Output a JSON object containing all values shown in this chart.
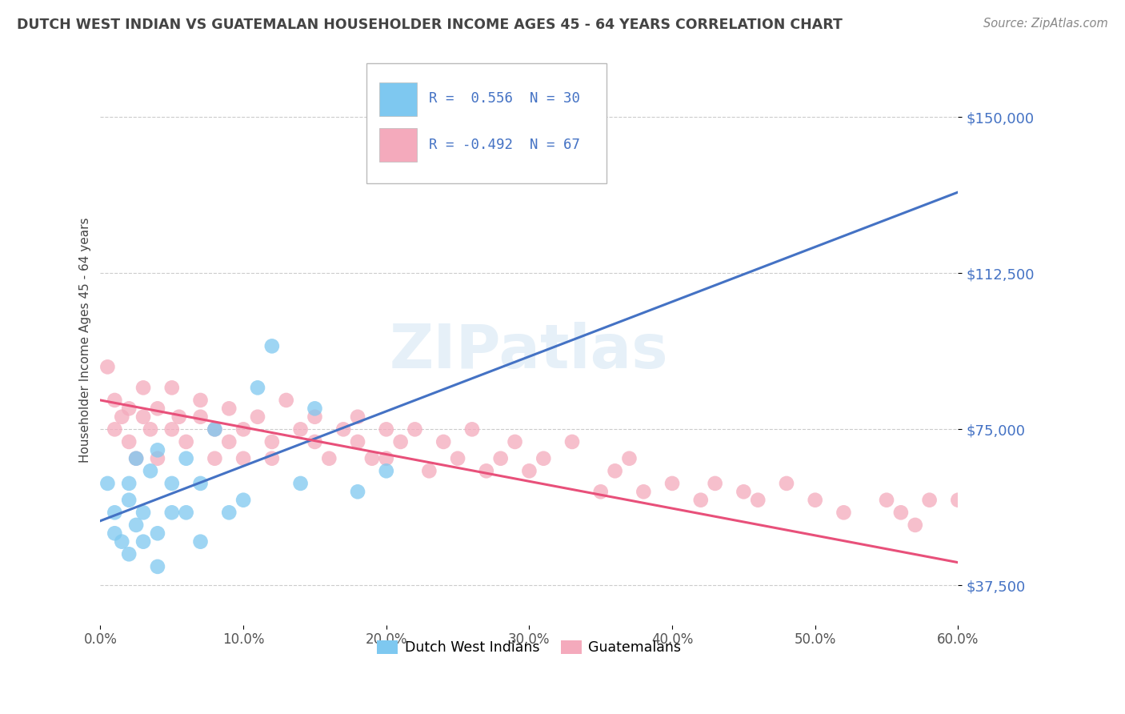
{
  "title": "DUTCH WEST INDIAN VS GUATEMALAN HOUSEHOLDER INCOME AGES 45 - 64 YEARS CORRELATION CHART",
  "source": "Source: ZipAtlas.com",
  "ylabel": "Householder Income Ages 45 - 64 years",
  "xlim": [
    0.0,
    0.6
  ],
  "ylim": [
    28000,
    165000
  ],
  "yticks": [
    37500,
    75000,
    112500,
    150000
  ],
  "xticks": [
    0.0,
    0.1,
    0.2,
    0.3,
    0.4,
    0.5,
    0.6
  ],
  "xtick_labels": [
    "0.0%",
    "10.0%",
    "20.0%",
    "30.0%",
    "40.0%",
    "50.0%",
    "60.0%"
  ],
  "ytick_labels": [
    "$37,500",
    "$75,000",
    "$112,500",
    "$150,000"
  ],
  "legend_entry1": "R =  0.556  N = 30",
  "legend_entry2": "R = -0.492  N = 67",
  "legend_label1": "Dutch West Indians",
  "legend_label2": "Guatemalans",
  "blue_color": "#7EC8F0",
  "pink_color": "#F4AABC",
  "line_blue": "#4472C4",
  "line_pink": "#E8507A",
  "r_color": "#4472C4",
  "watermark": "ZIPatlas",
  "background_color": "#FFFFFF",
  "grid_color": "#CCCCCC",
  "title_color": "#444444",
  "axis_label_color": "#444444",
  "blue_scatter": {
    "x": [
      0.005,
      0.01,
      0.01,
      0.015,
      0.02,
      0.02,
      0.02,
      0.025,
      0.025,
      0.03,
      0.03,
      0.035,
      0.04,
      0.04,
      0.04,
      0.05,
      0.05,
      0.06,
      0.06,
      0.07,
      0.07,
      0.08,
      0.09,
      0.1,
      0.11,
      0.12,
      0.14,
      0.15,
      0.18,
      0.2
    ],
    "y": [
      62000,
      50000,
      55000,
      48000,
      45000,
      58000,
      62000,
      52000,
      68000,
      48000,
      55000,
      65000,
      42000,
      50000,
      70000,
      55000,
      62000,
      55000,
      68000,
      62000,
      48000,
      75000,
      55000,
      58000,
      85000,
      95000,
      62000,
      80000,
      60000,
      65000
    ]
  },
  "pink_scatter": {
    "x": [
      0.005,
      0.01,
      0.01,
      0.015,
      0.02,
      0.02,
      0.025,
      0.03,
      0.03,
      0.035,
      0.04,
      0.04,
      0.05,
      0.05,
      0.055,
      0.06,
      0.07,
      0.07,
      0.08,
      0.08,
      0.09,
      0.09,
      0.1,
      0.1,
      0.11,
      0.12,
      0.12,
      0.13,
      0.14,
      0.15,
      0.15,
      0.16,
      0.17,
      0.18,
      0.18,
      0.19,
      0.2,
      0.2,
      0.21,
      0.22,
      0.23,
      0.24,
      0.25,
      0.26,
      0.27,
      0.28,
      0.29,
      0.3,
      0.31,
      0.33,
      0.35,
      0.36,
      0.37,
      0.38,
      0.4,
      0.42,
      0.43,
      0.45,
      0.46,
      0.48,
      0.5,
      0.52,
      0.55,
      0.56,
      0.57,
      0.58,
      0.6
    ],
    "y": [
      90000,
      75000,
      82000,
      78000,
      72000,
      80000,
      68000,
      78000,
      85000,
      75000,
      68000,
      80000,
      75000,
      85000,
      78000,
      72000,
      82000,
      78000,
      75000,
      68000,
      72000,
      80000,
      75000,
      68000,
      78000,
      72000,
      68000,
      82000,
      75000,
      78000,
      72000,
      68000,
      75000,
      72000,
      78000,
      68000,
      75000,
      68000,
      72000,
      75000,
      65000,
      72000,
      68000,
      75000,
      65000,
      68000,
      72000,
      65000,
      68000,
      72000,
      60000,
      65000,
      68000,
      60000,
      62000,
      58000,
      62000,
      60000,
      58000,
      62000,
      58000,
      55000,
      58000,
      55000,
      52000,
      58000,
      58000
    ]
  },
  "blue_line": {
    "x0": 0.0,
    "x1": 0.6,
    "y0": 53000,
    "y1": 132000
  },
  "pink_line": {
    "x0": 0.0,
    "x1": 0.6,
    "y0": 82000,
    "y1": 43000
  }
}
